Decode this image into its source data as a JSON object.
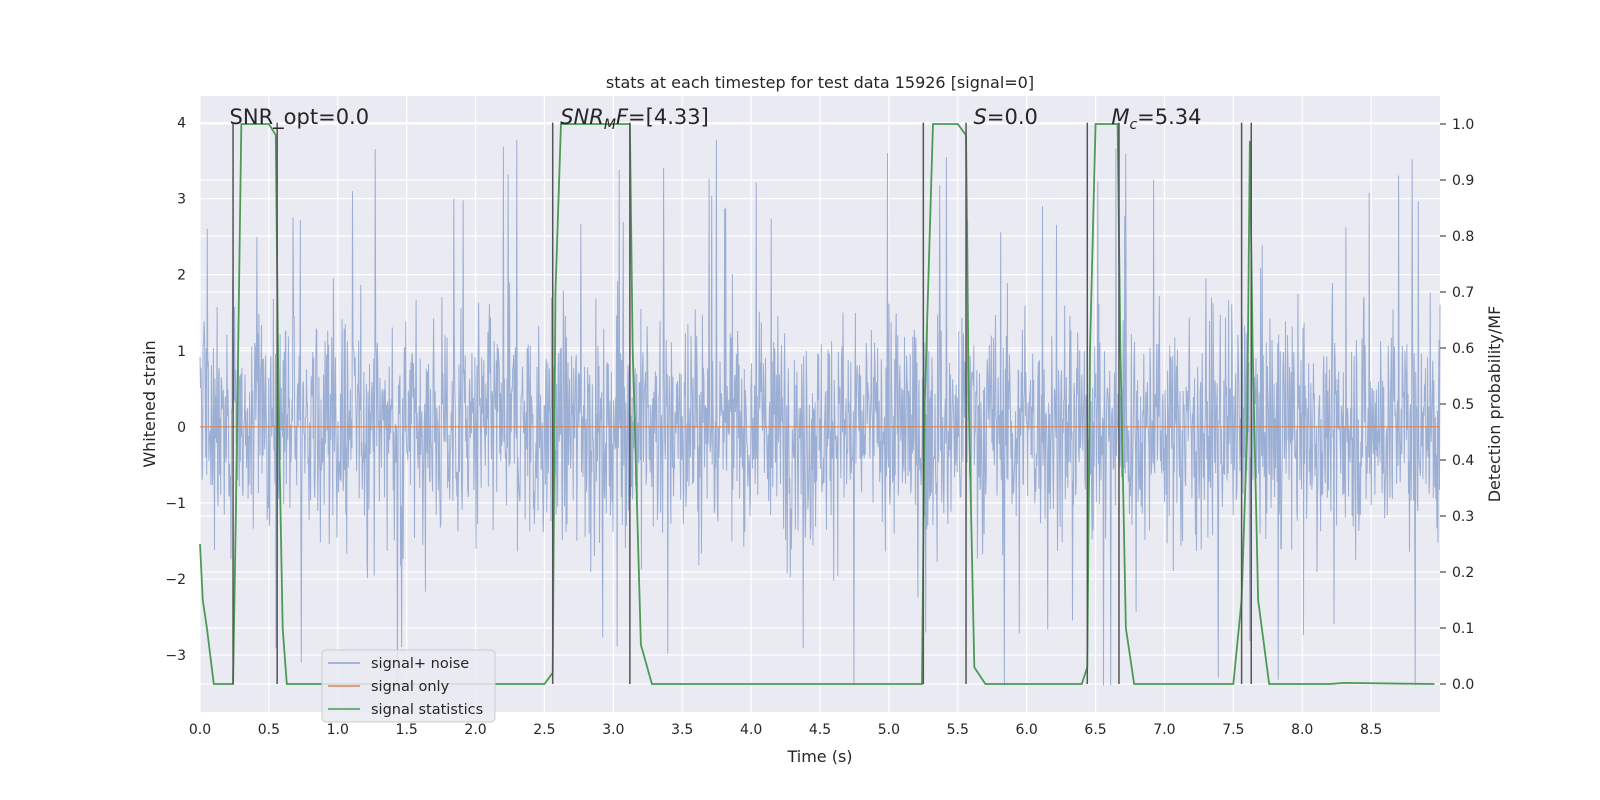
{
  "chart_data": {
    "type": "line",
    "title": "stats at each timestep for test data 15926 [signal=0]",
    "xlabel": "Time (s)",
    "ylabel": "Whitened strain",
    "ylabel_right": "Detection probability/MF",
    "xlim": [
      0.0,
      9.0
    ],
    "ylim": [
      -3.75,
      4.35
    ],
    "ylim_right": [
      -0.05,
      1.05
    ],
    "xticks": [
      0.0,
      0.5,
      1.0,
      1.5,
      2.0,
      2.5,
      3.0,
      3.5,
      4.0,
      4.5,
      5.0,
      5.5,
      6.0,
      6.5,
      7.0,
      7.5,
      8.0,
      8.5
    ],
    "xtick_labels": [
      "0.0",
      "0.5",
      "1.0",
      "1.5",
      "2.0",
      "2.5",
      "3.0",
      "3.5",
      "4.0",
      "4.5",
      "5.0",
      "5.5",
      "6.0",
      "6.5",
      "7.0",
      "7.5",
      "8.0",
      "8.5"
    ],
    "yticks": [
      -3,
      -2,
      -1,
      0,
      1,
      2,
      3,
      4
    ],
    "ytick_labels": [
      "−3",
      "−2",
      "−1",
      "0",
      "1",
      "2",
      "3",
      "4"
    ],
    "yticks_right": [
      0.0,
      0.1,
      0.2,
      0.3,
      0.4,
      0.5,
      0.6,
      0.7,
      0.8,
      0.9,
      1.0
    ],
    "ytick_labels_right": [
      "0.0",
      "0.1",
      "0.2",
      "0.3",
      "0.4",
      "0.5",
      "0.6",
      "0.7",
      "0.8",
      "0.9",
      "1.0"
    ],
    "annotations": [
      {
        "x": 0.2,
        "name": "snr-opt",
        "base": "SNR_opt",
        "sub": "",
        "value": "=0.0",
        "italic": false
      },
      {
        "x": 2.6,
        "name": "snr-mf",
        "base": "SNR",
        "sub": "M",
        "after": "F",
        "value": "=[4.33]",
        "italic": true
      },
      {
        "x": 5.6,
        "name": "s-stat",
        "base": "S",
        "sub": "",
        "value": "=0.0",
        "italic": true
      },
      {
        "x": 6.6,
        "name": "chirp-mass",
        "base": "M",
        "sub": "c",
        "value": "=5.34",
        "italic": true
      }
    ],
    "legend": {
      "position": "lower-left",
      "entries": [
        "signal+ noise",
        "signal only",
        "signal statistics"
      ]
    },
    "series": [
      {
        "name": "signal+ noise",
        "axis": "left",
        "color": "#8da3cf",
        "kind": "noise",
        "n_samples": 2400,
        "envelope": [
          -2.0,
          2.0
        ],
        "spike_max": 4.0,
        "spike_min": -3.4
      },
      {
        "name": "signal only",
        "axis": "left",
        "color": "#dd8452",
        "x": [
          0.0,
          9.0
        ],
        "y": [
          0.0,
          0.0
        ]
      },
      {
        "name": "signal statistics",
        "axis": "right",
        "color": "#4c9a55",
        "x": [
          0.0,
          0.02,
          0.05,
          0.1,
          0.2,
          0.24,
          0.26,
          0.3,
          0.5,
          0.55,
          0.57,
          0.6,
          0.63,
          2.5,
          2.56,
          2.58,
          2.62,
          3.12,
          3.14,
          3.2,
          3.28,
          5.24,
          5.26,
          5.32,
          5.4,
          5.5,
          5.56,
          5.58,
          5.62,
          5.7,
          6.4,
          6.44,
          6.46,
          6.5,
          6.66,
          6.68,
          6.72,
          6.78,
          7.5,
          7.56,
          7.6,
          7.62,
          7.64,
          7.68,
          7.76,
          8.2,
          8.3,
          8.96
        ],
        "y": [
          0.25,
          0.15,
          0.1,
          0.0,
          0.0,
          0.0,
          0.3,
          1.0,
          1.0,
          0.98,
          0.5,
          0.1,
          0.0,
          0.0,
          0.02,
          0.7,
          1.0,
          1.0,
          0.6,
          0.07,
          0.0,
          0.0,
          0.5,
          1.0,
          1.0,
          1.0,
          0.98,
          0.5,
          0.03,
          0.0,
          0.0,
          0.03,
          0.6,
          1.0,
          1.0,
          0.6,
          0.1,
          0.0,
          0.0,
          0.15,
          0.45,
          0.97,
          0.6,
          0.15,
          0.0,
          0.0,
          0.002,
          0.0
        ]
      }
    ],
    "vlines": [
      0.24,
      0.56,
      2.56,
      3.12,
      5.25,
      5.56,
      6.44,
      6.67,
      7.56,
      7.63
    ]
  }
}
